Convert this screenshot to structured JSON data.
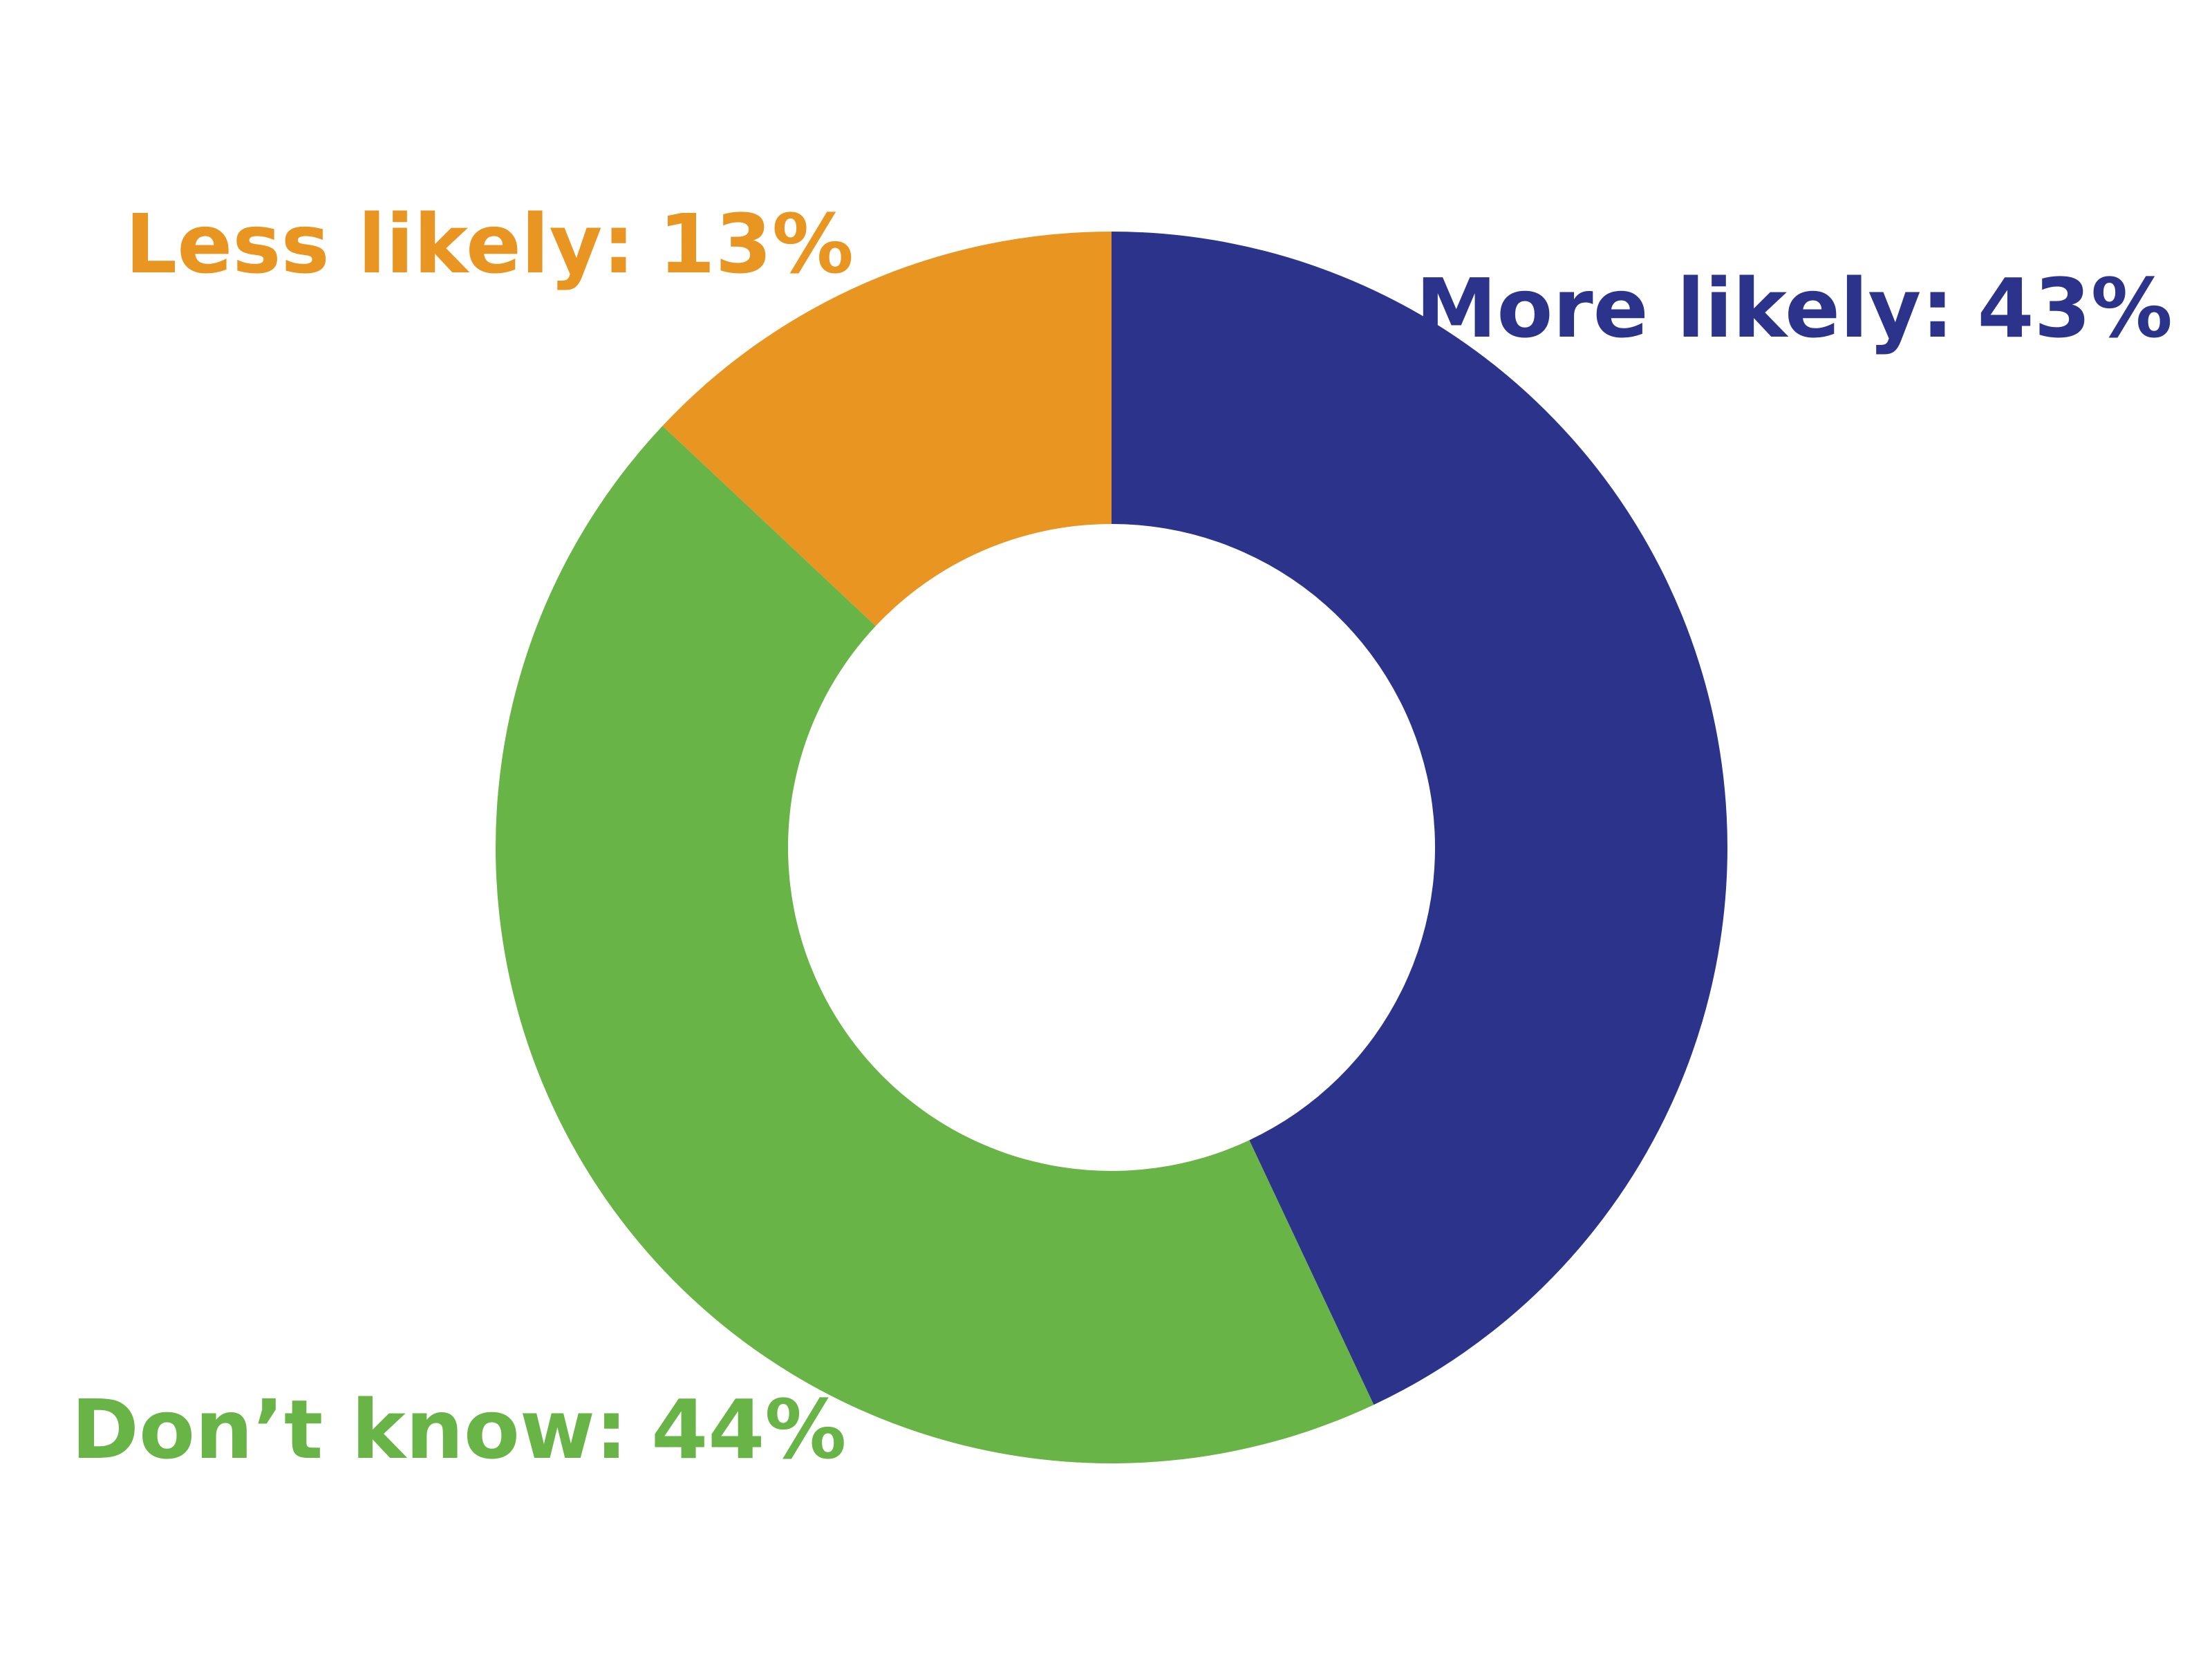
{
  "chart_data": {
    "type": "donut",
    "categories": [
      "More likely:",
      "Don’t know:",
      "Less likely:"
    ],
    "values": [
      43,
      44,
      13
    ],
    "value_labels": [
      "43%",
      "44%",
      "13%"
    ],
    "colors": [
      "#2b348a",
      "#69b446",
      "#e89522"
    ]
  }
}
